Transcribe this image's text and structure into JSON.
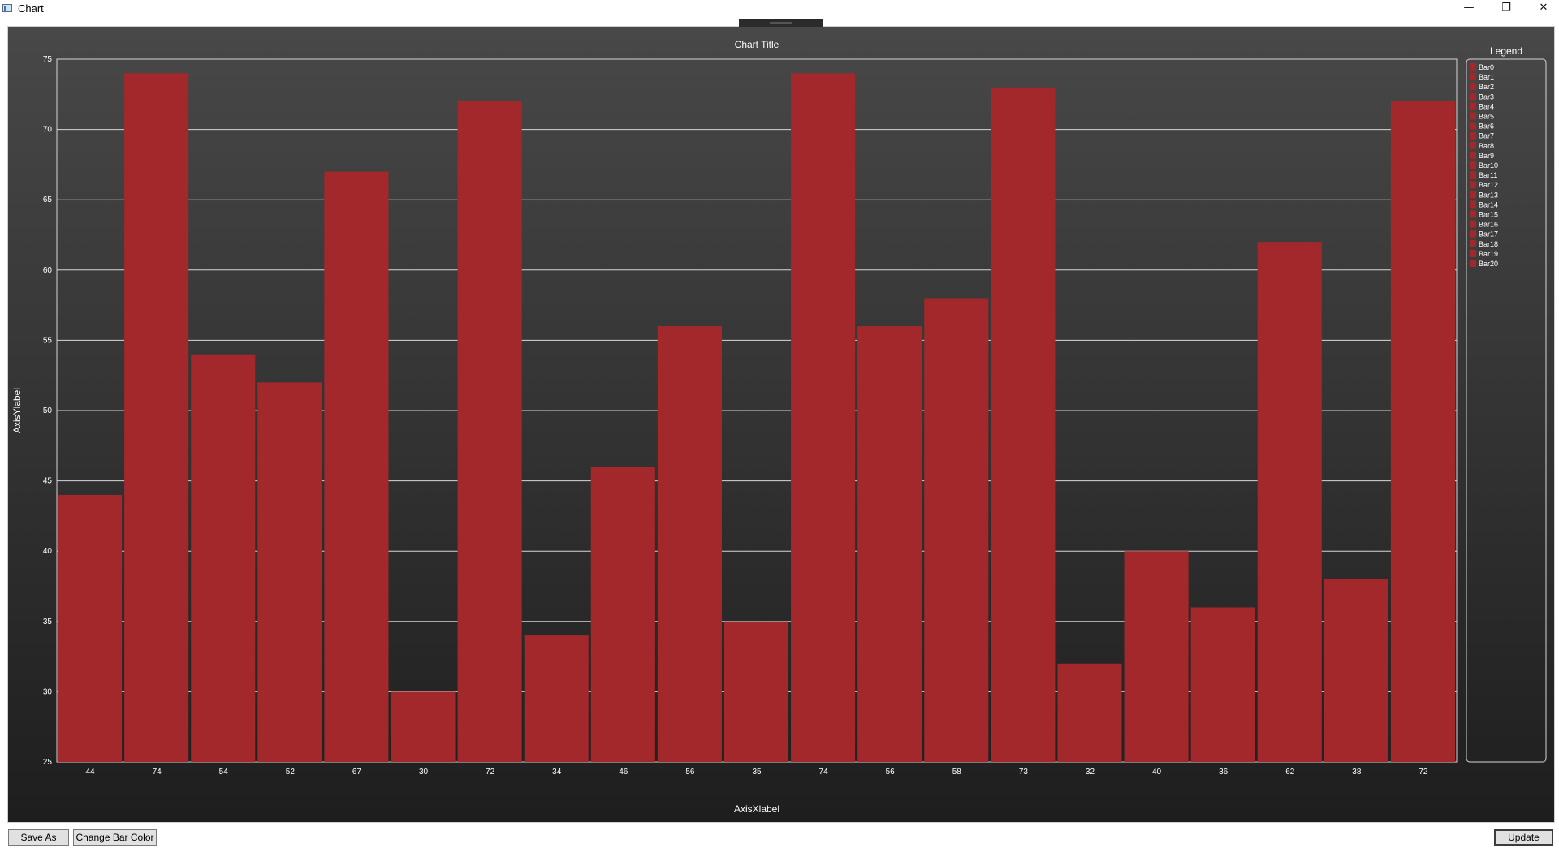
{
  "window": {
    "title": "Chart",
    "minimize_glyph": "—",
    "maximize_glyph": "❐",
    "close_glyph": "✕"
  },
  "buttons": {
    "save_as": "Save As",
    "change_bar_color": "Change Bar Color",
    "update": "Update"
  },
  "chart_data": {
    "type": "bar",
    "title": "Chart Title",
    "xlabel": "AxisXlabel",
    "ylabel": "AxisYlabel",
    "ylim": [
      25,
      75
    ],
    "yticks": [
      25,
      30,
      35,
      40,
      45,
      50,
      55,
      60,
      65,
      70,
      75
    ],
    "grid": true,
    "bar_color": "#a3282b",
    "legend_title": "Legend",
    "legend_placement": "right",
    "categories": [
      "44",
      "74",
      "54",
      "52",
      "67",
      "30",
      "72",
      "34",
      "46",
      "56",
      "35",
      "74",
      "56",
      "58",
      "73",
      "32",
      "40",
      "36",
      "62",
      "38",
      "72"
    ],
    "series": [
      {
        "values": [
          44,
          74,
          54,
          52,
          67,
          30,
          72,
          34,
          46,
          56,
          35,
          74,
          56,
          58,
          73,
          32,
          40,
          36,
          62,
          38,
          72
        ]
      }
    ],
    "legend_entries": [
      "Bar0",
      "Bar1",
      "Bar2",
      "Bar3",
      "Bar4",
      "Bar5",
      "Bar6",
      "Bar7",
      "Bar8",
      "Bar9",
      "Bar10",
      "Bar11",
      "Bar12",
      "Bar13",
      "Bar14",
      "Bar15",
      "Bar16",
      "Bar17",
      "Bar18",
      "Bar19",
      "Bar20"
    ]
  }
}
